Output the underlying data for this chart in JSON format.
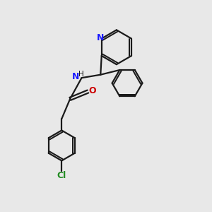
{
  "bg_color": "#e8e8e8",
  "bond_color": "#1a1a1a",
  "N_color": "#1a1aff",
  "O_color": "#cc0000",
  "Cl_color": "#228b22",
  "line_width": 1.6,
  "fig_size": [
    3.0,
    3.0
  ],
  "dpi": 100,
  "xlim": [
    0,
    10
  ],
  "ylim": [
    0,
    10
  ]
}
